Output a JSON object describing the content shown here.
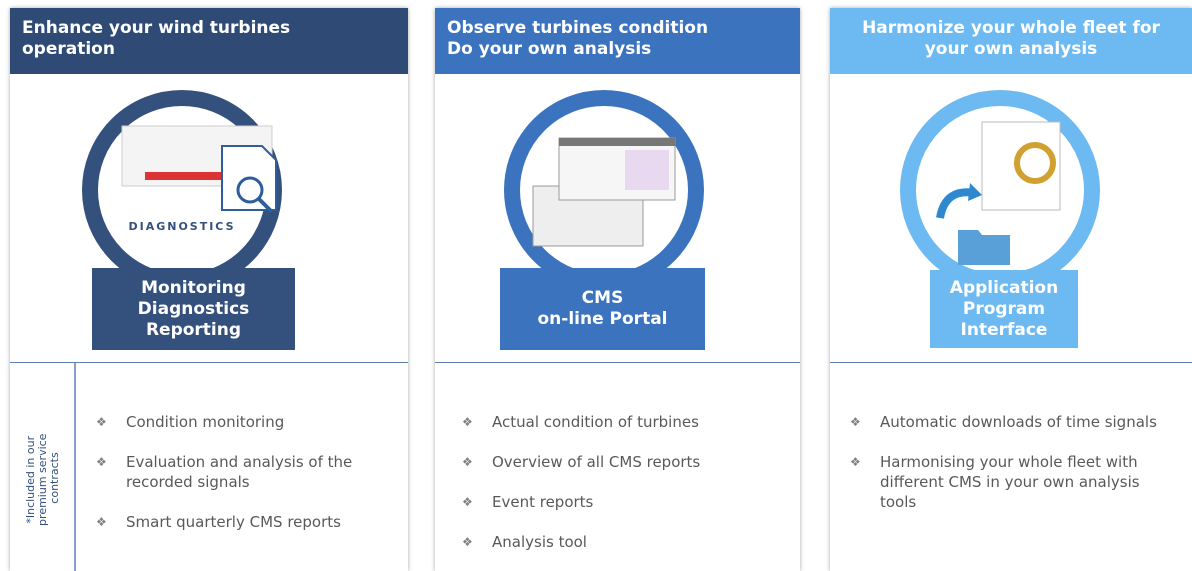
{
  "panels": [
    {
      "header": [
        "Enhance your wind turbines",
        "operation"
      ],
      "logo_text": "DIAGNOSTICS",
      "label": [
        "Monitoring",
        "Diagnostics",
        "Reporting"
      ],
      "side_note": [
        "*Included in our",
        "premium service",
        "contracts"
      ],
      "bullets": [
        "Condition monitoring",
        "Evaluation and analysis of the recorded signals",
        "Smart quarterly CMS reports"
      ]
    },
    {
      "header": [
        "Observe turbines condition",
        "Do your own analysis"
      ],
      "label": [
        "CMS",
        "on-line Portal"
      ],
      "bullets": [
        "Actual condition of turbines",
        "Overview of all CMS reports",
        "Event reports",
        "Analysis tool"
      ]
    },
    {
      "header": [
        "Harmonize your whole fleet for",
        "your own analysis"
      ],
      "label": [
        "Application",
        "Program",
        "Interface"
      ],
      "bullets": [
        "Automatic downloads of time signals",
        "Harmonising your whole fleet with different CMS in your own analysis tools"
      ]
    }
  ]
}
